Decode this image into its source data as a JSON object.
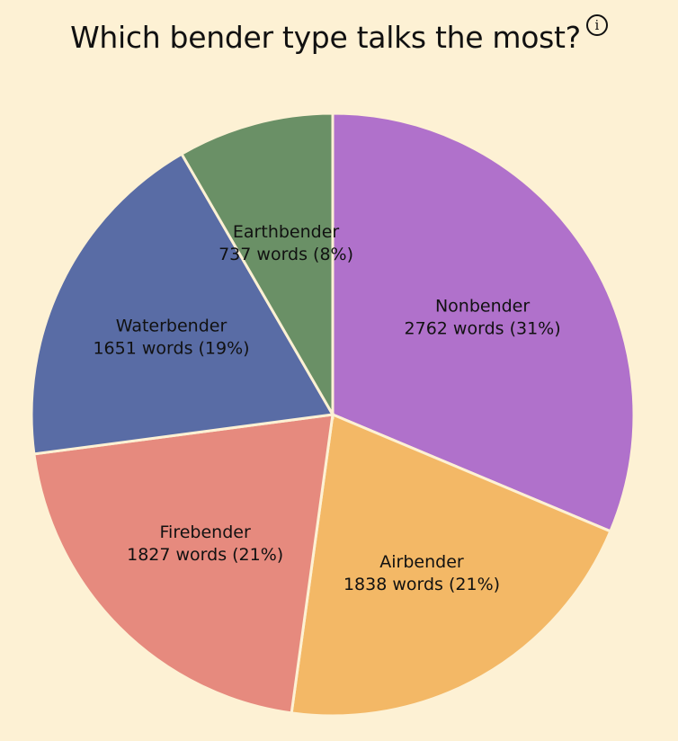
{
  "header": {
    "title": "Which bender type talks the most?",
    "info_glyph": "i"
  },
  "chart_data": {
    "type": "pie",
    "title": "Which bender type talks the most?",
    "legend": "none (labels on slices)",
    "slices": [
      {
        "name": "Nonbender",
        "value": 2762,
        "label": "2762 words (31%)",
        "color": "#b071cb"
      },
      {
        "name": "Airbender",
        "value": 1838,
        "label": "1838 words (21%)",
        "color": "#f3b866"
      },
      {
        "name": "Firebender",
        "value": 1827,
        "label": "1827 words (21%)",
        "color": "#e68a7e"
      },
      {
        "name": "Waterbender",
        "value": 1651,
        "label": "1651 words (19%)",
        "color": "#596ca5"
      },
      {
        "name": "Earthbender",
        "value": 737,
        "label": "737 words (8%)",
        "color": "#6a9066"
      }
    ],
    "stroke_color": "#fdf1d4"
  }
}
